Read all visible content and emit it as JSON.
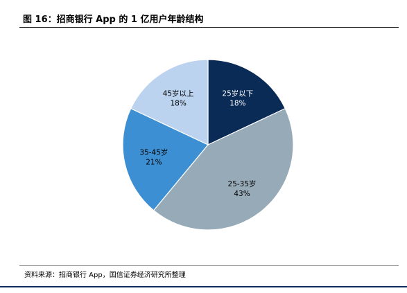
{
  "header": {
    "title": "图 16：招商银行 App 的 1 亿用户年龄结构"
  },
  "chart_data": {
    "type": "pie",
    "title": "",
    "slices": [
      {
        "label": "25岁以下",
        "value": 18,
        "value_label": "18%",
        "color": "#0b2b57",
        "label_color": "#ffffff"
      },
      {
        "label": "25-35岁",
        "value": 43,
        "value_label": "43%",
        "color": "#97aab8",
        "label_color": "#000000"
      },
      {
        "label": "35-45岁",
        "value": 21,
        "value_label": "21%",
        "color": "#3d8fd3",
        "label_color": "#000000"
      },
      {
        "label": "45岁以上",
        "value": 18,
        "value_label": "18%",
        "color": "#bcd3ef",
        "label_color": "#000000"
      }
    ],
    "start": "12 o'clock",
    "direction": "clockwise",
    "legend": "none"
  },
  "footer": {
    "source": "资料来源：招商银行 App，国信证券经济研究所整理"
  }
}
